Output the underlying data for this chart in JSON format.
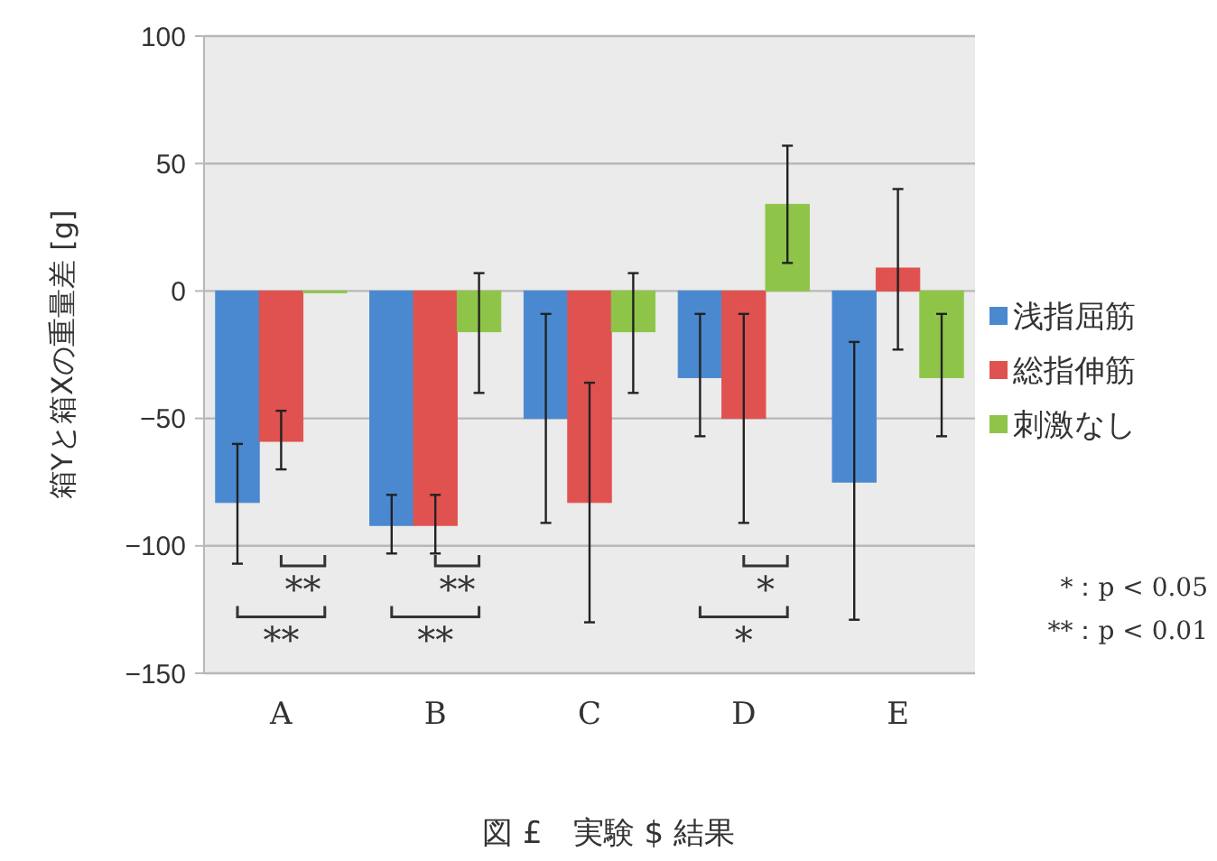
{
  "chart_data": {
    "type": "bar",
    "title": "図 £　実験 $ 結果",
    "ylabel": "箱Yと箱Xの重量差 [g]",
    "categories": [
      "A",
      "B",
      "C",
      "D",
      "E"
    ],
    "series": [
      {
        "name": "浅指屈筋",
        "color": "#4a89d0",
        "values": [
          -83,
          -92,
          -50,
          -34,
          -75
        ],
        "errors": [
          [
            -107,
            -60
          ],
          [
            -103,
            -80
          ],
          [
            -91,
            -9
          ],
          [
            -57,
            -9
          ],
          [
            -129,
            -20
          ]
        ]
      },
      {
        "name": "総指伸筋",
        "color": "#e05250",
        "values": [
          -59,
          -92,
          -83,
          -50,
          9
        ],
        "errors": [
          [
            -70,
            -47
          ],
          [
            -103,
            -80
          ],
          [
            -130,
            -36
          ],
          [
            -91,
            -9
          ],
          [
            -23,
            40
          ]
        ]
      },
      {
        "name": "刺激なし",
        "color": "#8ec549",
        "values": [
          0,
          -16,
          -16,
          34,
          -34
        ],
        "errors": [
          null,
          [
            -40,
            7
          ],
          [
            -40,
            7
          ],
          [
            11,
            57
          ],
          [
            -57,
            -9
          ]
        ]
      }
    ],
    "ylim": [
      -150,
      100
    ],
    "yticks": [
      -150,
      -100,
      -50,
      0,
      50,
      100
    ],
    "grid": "y",
    "legend": "right",
    "annotations": [
      "**",
      "**",
      "**",
      "**",
      "*",
      "*",
      "*：p < 0.05",
      "**：p < 0.01"
    ]
  }
}
